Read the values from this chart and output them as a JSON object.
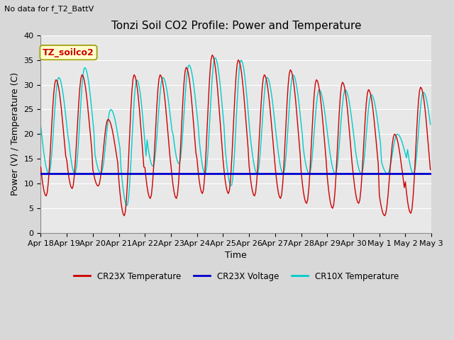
{
  "title": "Tonzi Soil CO2 Profile: Power and Temperature",
  "subtitle": "No data for f_T2_BattV",
  "xlabel": "Time",
  "ylabel": "Power (V) / Temperature (C)",
  "box_label": "TZ_soilco2",
  "ylim": [
    0,
    40
  ],
  "yticks": [
    0,
    5,
    10,
    15,
    20,
    25,
    30,
    35,
    40
  ],
  "xtick_labels": [
    "Apr 18",
    "Apr 19",
    "Apr 20",
    "Apr 21",
    "Apr 22",
    "Apr 23",
    "Apr 24",
    "Apr 25",
    "Apr 26",
    "Apr 27",
    "Apr 28",
    "Apr 29",
    "Apr 30",
    "May 1",
    "May 2",
    "May 3"
  ],
  "cr23x_color": "#cc0000",
  "cr10x_color": "#00cccc",
  "voltage_color": "#0000cc",
  "voltage_value": 12.0,
  "legend_labels": [
    "CR23X Temperature",
    "CR23X Voltage",
    "CR10X Temperature"
  ],
  "bg_color": "#e8e8e8",
  "grid_color": "#ffffff",
  "title_fontsize": 11,
  "label_fontsize": 9,
  "tick_fontsize": 8,
  "fig_width": 6.4,
  "fig_height": 4.8,
  "dpi": 100
}
